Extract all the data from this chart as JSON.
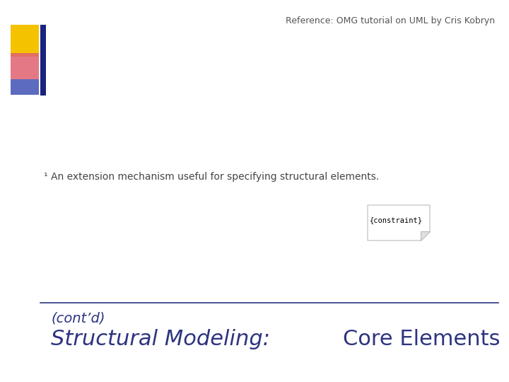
{
  "title_italic": "Structural Modeling: ",
  "title_normal": "Core Elements",
  "subtitle": "(cont’d)",
  "title_color": "#2e3480",
  "bg_color": "#ffffff",
  "line_color": "#2e3480",
  "footnote": "¹ An extension mechanism useful for specifying structural elements.",
  "footnote_color": "#444444",
  "reference": "Reference: OMG tutorial on UML by Cris Kobryn",
  "reference_color": "#555555",
  "constraint_text": "{constraint}",
  "constraint_box_color": "#bbbbbb",
  "constraint_text_color": "#000000",
  "deco_yellow": "#f5c200",
  "deco_pink": "#e06070",
  "deco_blue_dark": "#1a237e",
  "deco_blue_light": "#5c6bc0",
  "title_fontsize": 22,
  "subtitle_fontsize": 14,
  "footnote_fontsize": 10,
  "ref_fontsize": 9
}
